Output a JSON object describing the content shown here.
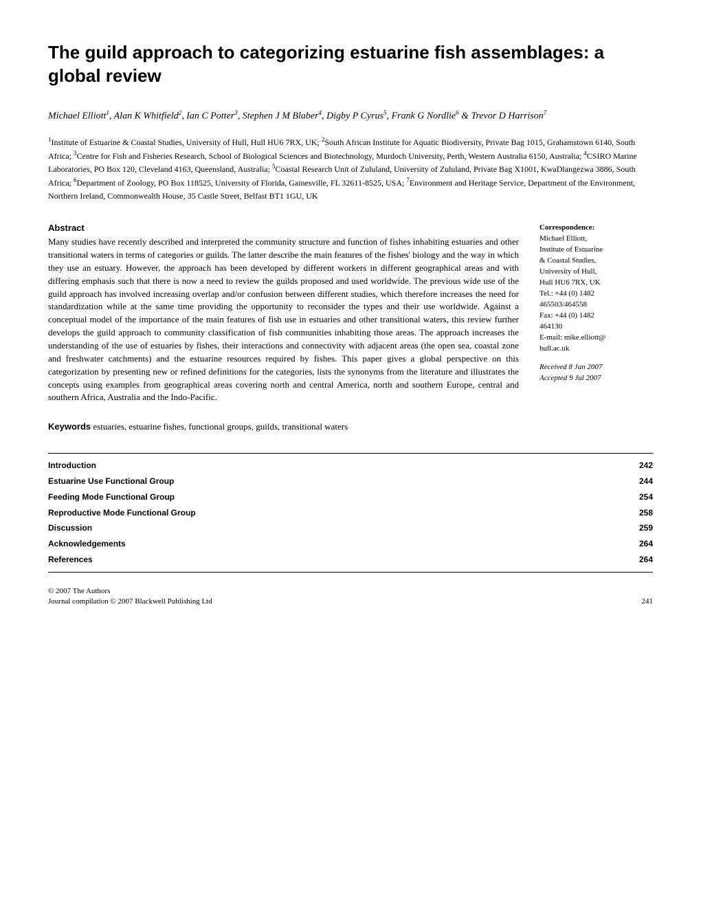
{
  "title": "The guild approach to categorizing estuarine fish assemblages: a global review",
  "authors_html": "Michael Elliott<sup>1</sup>, Alan K Whitfield<sup>2</sup>, Ian C Potter<sup>3</sup>, Stephen J M Blaber<sup>4</sup>, Digby P Cyrus<sup>5</sup>, Frank G Nordlie<sup>6</sup> & Trevor D Harrison<sup>7</sup>",
  "affiliations_html": "<sup>1</sup>Institute of Estuarine & Coastal Studies, University of Hull, Hull HU6 7RX, UK; <sup>2</sup>South African Institute for Aquatic Biodiversity, Private Bag 1015, Grahamstown 6140, South Africa; <sup>3</sup>Centre for Fish and Fisheries Research, School of Biological Sciences and Biotechnology, Murdoch University, Perth, Western Australia 6150, Australia; <sup>4</sup>CSIRO Marine Laboratories, PO Box 120, Cleveland 4163, Queensland, Australia; <sup>5</sup>Coastal Research Unit of Zululand, University of Zululand, Private Bag X1001, KwaDlangezwa 3886, South Africa; <sup>6</sup>Department of Zoology, PO Box 118525, University of Florida, Gainesville, FL 32611-8525, USA; <sup>7</sup>Environment and Heritage Service, Department of the Environment, Northern Ireland, Commonwealth House, 35 Castle Street, Belfast BT1 1GU, UK",
  "abstract": {
    "heading": "Abstract",
    "text": "Many studies have recently described and interpreted the community structure and function of fishes inhabiting estuaries and other transitional waters in terms of categories or guilds. The latter describe the main features of the fishes' biology and the way in which they use an estuary. However, the approach has been developed by different workers in different geographical areas and with differing emphasis such that there is now a need to review the guilds proposed and used worldwide. The previous wide use of the guild approach has involved increasing overlap and/or confusion between different studies, which therefore increases the need for standardization while at the same time providing the opportunity to reconsider the types and their use worldwide. Against a conceptual model of the importance of the main features of fish use in estuaries and other transitional waters, this review further develops the guild approach to community classification of fish communities inhabiting those areas. The approach increases the understanding of the use of estuaries by fishes, their interactions and connectivity with adjacent areas (the open sea, coastal zone and freshwater catchments) and the estuarine resources required by fishes. This paper gives a global perspective on this categorization by presenting new or refined definitions for the categories, lists the synonyms from the literature and illustrates the concepts using examples from geographical areas covering north and central America, north and southern Europe, central and southern Africa, Australia and the Indo-Pacific."
  },
  "correspondence": {
    "heading": "Correspondence:",
    "lines": [
      "Michael Elliott,",
      "Institute of Estuarine",
      "& Coastal Studies,",
      "University of Hull,",
      "Hull HU6 7RX, UK",
      "Tel.: +44 (0) 1482",
      "465503/464558",
      "Fax: +44 (0) 1482",
      "464130",
      "E-mail: mike.elliott@",
      "hull.ac.uk"
    ],
    "received": "Received 8 Jan 2007",
    "accepted": "Accepted 9 Jul 2007"
  },
  "keywords": {
    "label": "Keywords",
    "text": " estuaries, estuarine fishes, functional groups, guilds, transitional waters"
  },
  "toc": [
    {
      "label": "Introduction",
      "page": "242"
    },
    {
      "label": "Estuarine Use Functional Group",
      "page": "244"
    },
    {
      "label": "Feeding Mode Functional Group",
      "page": "254"
    },
    {
      "label": "Reproductive Mode Functional Group",
      "page": "258"
    },
    {
      "label": "Discussion",
      "page": "259"
    },
    {
      "label": "Acknowledgements",
      "page": "264"
    },
    {
      "label": "References",
      "page": "264"
    }
  ],
  "footer": {
    "line1": "© 2007 The Authors",
    "line2": "Journal compilation © 2007 Blackwell Publishing Ltd",
    "page": "241"
  },
  "style": {
    "body_width": 1020,
    "title_fontsize": 26,
    "authors_fontsize": 14,
    "affiliations_fontsize": 12,
    "abstract_fontsize": 13,
    "corr_fontsize": 11,
    "toc_fontsize": 12,
    "footer_fontsize": 11,
    "text_color": "#000000",
    "background_color": "#ffffff",
    "rule_color": "#000000"
  }
}
